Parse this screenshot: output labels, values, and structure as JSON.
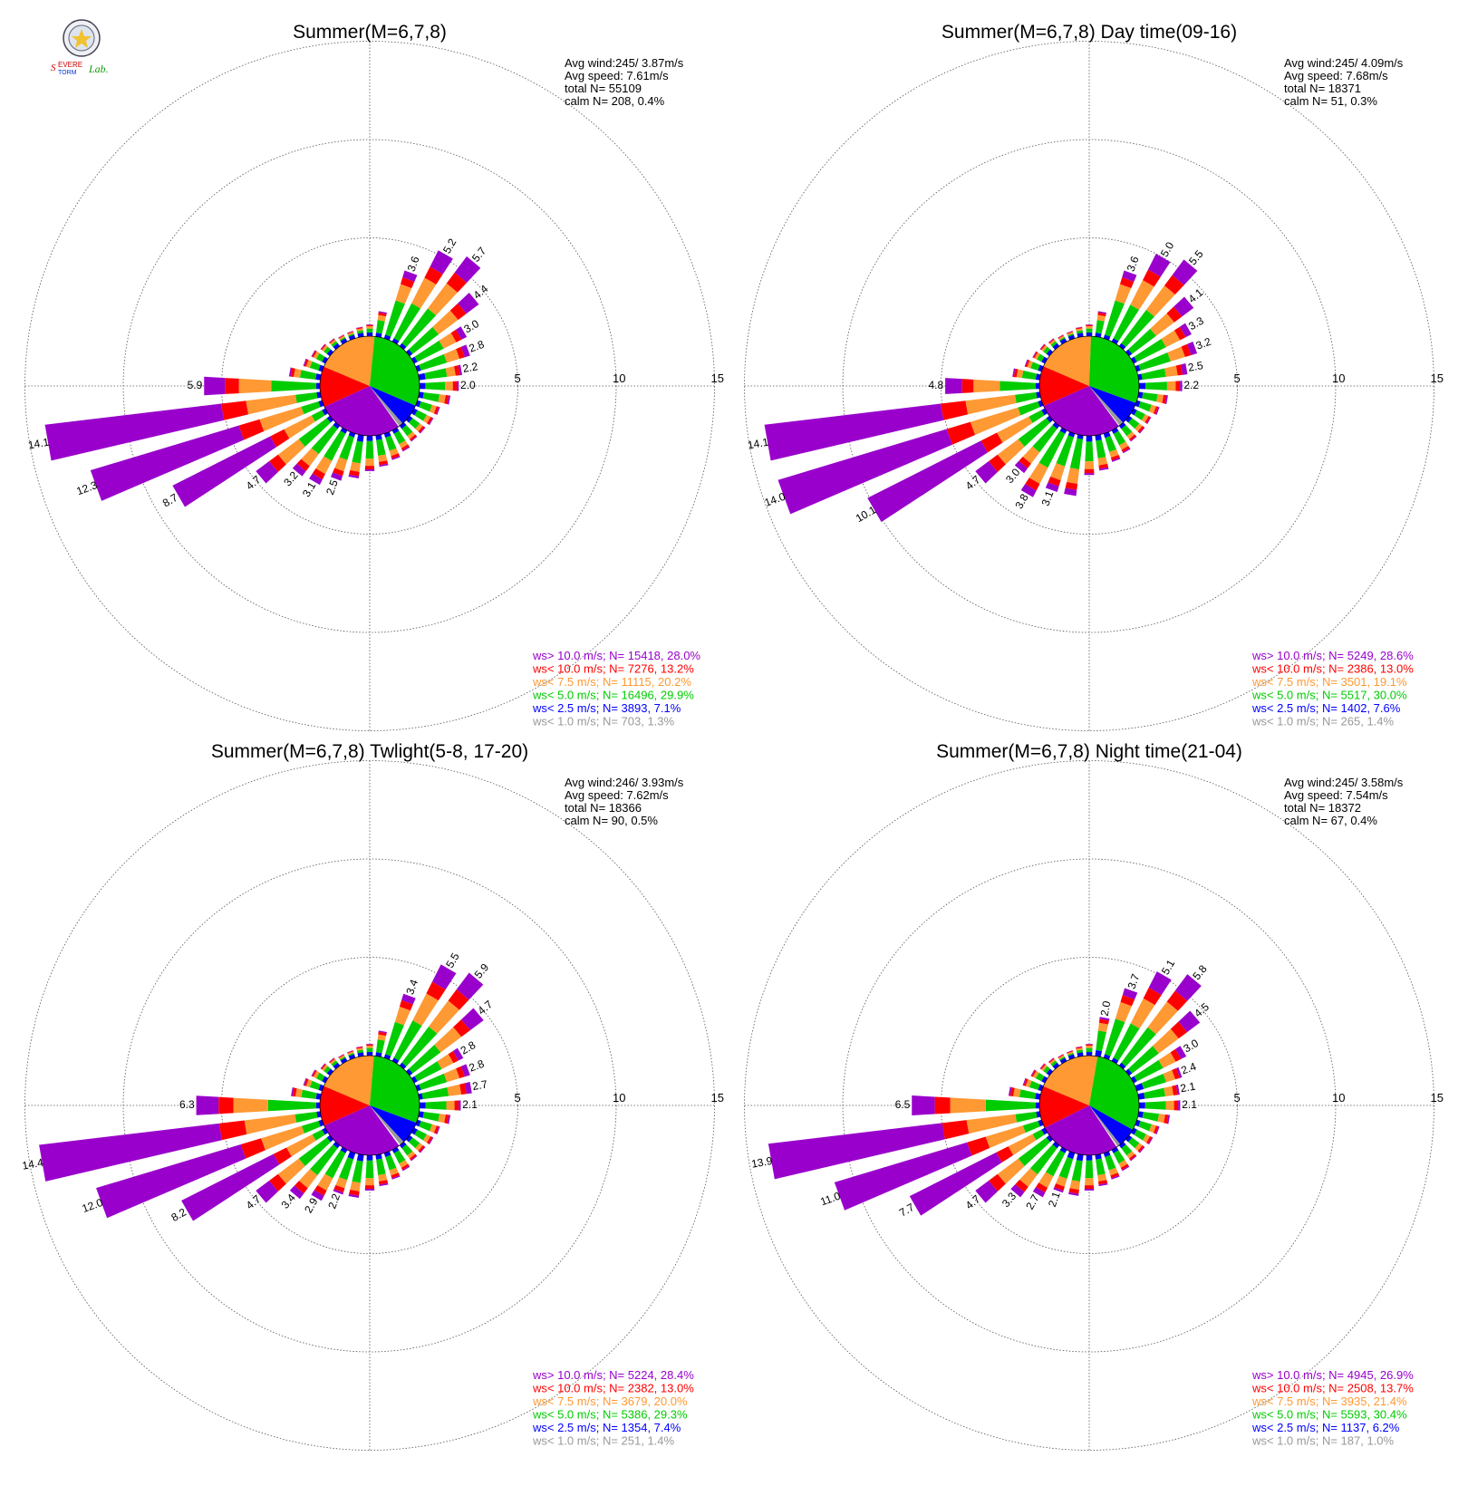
{
  "logo": {
    "text": "Severe Storm Lab."
  },
  "colors": {
    "gt10": "#9900cc",
    "lt10": "#ff0000",
    "lt7_5": "#ff9933",
    "lt5": "#00cc00",
    "lt2_5": "#0000ff",
    "lt1": "#999999"
  },
  "rings": [
    "5",
    "10",
    "15"
  ],
  "chart_data": [
    {
      "type": "wind-rose",
      "title": "Summer(M=6,7,8)",
      "stats": {
        "avg_wind": "Avg wind:245/ 3.87m/s",
        "avg_speed": "Avg speed: 7.61m/s",
        "total": "total N=      55109",
        "calm": "calm N=    208,   0.4%"
      },
      "legend": [
        {
          "text": "ws> 10.0 m/s; N= 15418, 28.0%",
          "color": "#9900cc"
        },
        {
          "text": "ws< 10.0 m/s; N=  7276, 13.2%",
          "color": "#ff0000"
        },
        {
          "text": "ws<  7.5 m/s; N= 11115, 20.2%",
          "color": "#ff9933"
        },
        {
          "text": "ws<  5.0 m/s; N= 16496, 29.9%",
          "color": "#00cc00"
        },
        {
          "text": "ws<  2.5 m/s; N=  3893,  7.1%",
          "color": "#0000ff"
        },
        {
          "text": "ws<  1.0 m/s; N=   703,  1.3%",
          "color": "#999999"
        }
      ],
      "ring_values": [
        5,
        10,
        15
      ],
      "sectors_deg": [
        0,
        10,
        20,
        30,
        40,
        50,
        60,
        70,
        80,
        90,
        100,
        110,
        120,
        130,
        140,
        150,
        160,
        170,
        180,
        190,
        200,
        210,
        220,
        230,
        240,
        250,
        260,
        270,
        280,
        290,
        300,
        310,
        320,
        330,
        340,
        350
      ],
      "frequency_pct": [
        0.6,
        1.3,
        3.6,
        5.2,
        5.7,
        4.4,
        3.0,
        2.8,
        2.2,
        2.0,
        1.6,
        1.2,
        1.1,
        1.0,
        1.0,
        1.2,
        1.4,
        1.6,
        1.8,
        2.2,
        2.5,
        3.1,
        3.2,
        4.7,
        8.7,
        12.3,
        14.1,
        5.9,
        1.6,
        1.0,
        0.8,
        0.6,
        0.5,
        0.4,
        0.4,
        0.5
      ],
      "pie_pct": [
        28.0,
        13.2,
        20.2,
        29.9,
        7.1,
        1.3
      ],
      "labels": [
        {
          "deg": 20,
          "text": "3.6"
        },
        {
          "deg": 30,
          "text": "5.2"
        },
        {
          "deg": 40,
          "text": "5.7"
        },
        {
          "deg": 50,
          "text": "4.4"
        },
        {
          "deg": 60,
          "text": "3.0"
        },
        {
          "deg": 70,
          "text": "2.8"
        },
        {
          "deg": 80,
          "text": "2.2"
        },
        {
          "deg": 90,
          "text": "2.0"
        },
        {
          "deg": 200,
          "text": "2.5"
        },
        {
          "deg": 210,
          "text": "3.1"
        },
        {
          "deg": 220,
          "text": "3.2"
        },
        {
          "deg": 230,
          "text": "4.7"
        },
        {
          "deg": 240,
          "text": "8.7"
        },
        {
          "deg": 250,
          "text": "12.3"
        },
        {
          "deg": 260,
          "text": "14.1"
        },
        {
          "deg": 270,
          "text": "5.9"
        }
      ]
    },
    {
      "type": "wind-rose",
      "title": "Summer(M=6,7,8) Day time(09-16)",
      "stats": {
        "avg_wind": "Avg wind:245/ 4.09m/s",
        "avg_speed": "Avg speed: 7.68m/s",
        "total": "total N=     18371",
        "calm": "calm N=     51,   0.3%"
      },
      "legend": [
        {
          "text": "ws> 10.0 m/s; N=  5249, 28.6%",
          "color": "#9900cc"
        },
        {
          "text": "ws< 10.0 m/s; N=  2386, 13.0%",
          "color": "#ff0000"
        },
        {
          "text": "ws<  7.5 m/s; N=  3501, 19.1%",
          "color": "#ff9933"
        },
        {
          "text": "ws<  5.0 m/s; N=  5517, 30.0%",
          "color": "#00cc00"
        },
        {
          "text": "ws<  2.5 m/s; N=  1402,  7.6%",
          "color": "#0000ff"
        },
        {
          "text": "ws<  1.0 m/s; N=   265,  1.4%",
          "color": "#999999"
        }
      ],
      "ring_values": [
        5,
        10,
        15
      ],
      "sectors_deg": [
        0,
        10,
        20,
        30,
        40,
        50,
        60,
        70,
        80,
        90,
        100,
        110,
        120,
        130,
        140,
        150,
        160,
        170,
        180,
        190,
        200,
        210,
        220,
        230,
        240,
        250,
        260,
        270,
        280,
        290,
        300,
        310,
        320,
        330,
        340,
        350
      ],
      "frequency_pct": [
        0.6,
        1.3,
        3.6,
        5.0,
        5.5,
        4.1,
        3.3,
        3.2,
        2.5,
        2.2,
        1.5,
        1.2,
        1.0,
        1.0,
        1.0,
        1.3,
        1.5,
        1.8,
        2.0,
        3.1,
        3.1,
        3.8,
        3.0,
        4.7,
        10.1,
        14.0,
        14.1,
        4.8,
        1.4,
        0.9,
        0.7,
        0.6,
        0.5,
        0.4,
        0.4,
        0.5
      ],
      "pie_pct": [
        28.6,
        13.0,
        19.1,
        30.0,
        7.6,
        1.4
      ],
      "labels": [
        {
          "deg": 20,
          "text": "3.6"
        },
        {
          "deg": 30,
          "text": "5.0"
        },
        {
          "deg": 40,
          "text": "5.5"
        },
        {
          "deg": 50,
          "text": "4.1"
        },
        {
          "deg": 60,
          "text": "3.3"
        },
        {
          "deg": 70,
          "text": "3.2"
        },
        {
          "deg": 80,
          "text": "2.5"
        },
        {
          "deg": 90,
          "text": "2.2"
        },
        {
          "deg": 200,
          "text": "3.1"
        },
        {
          "deg": 210,
          "text": "3.8"
        },
        {
          "deg": 220,
          "text": "3.0"
        },
        {
          "deg": 230,
          "text": "4.7"
        },
        {
          "deg": 240,
          "text": "10.1"
        },
        {
          "deg": 250,
          "text": "14.0"
        },
        {
          "deg": 260,
          "text": "14.1"
        },
        {
          "deg": 270,
          "text": "4.8"
        }
      ]
    },
    {
      "type": "wind-rose",
      "title": "Summer(M=6,7,8) Twlight(5-8, 17-20)",
      "stats": {
        "avg_wind": "Avg wind:246/ 3.93m/s",
        "avg_speed": "Avg speed: 7.62m/s",
        "total": "total N=     18366",
        "calm": "calm N=     90,   0.5%"
      },
      "legend": [
        {
          "text": "ws> 10.0 m/s; N=  5224, 28.4%",
          "color": "#9900cc"
        },
        {
          "text": "ws< 10.0 m/s; N=  2382, 13.0%",
          "color": "#ff0000"
        },
        {
          "text": "ws<  7.5 m/s; N=  3679, 20.0%",
          "color": "#ff9933"
        },
        {
          "text": "ws<  5.0 m/s; N=  5386, 29.3%",
          "color": "#00cc00"
        },
        {
          "text": "ws<  2.5 m/s; N=  1354,  7.4%",
          "color": "#0000ff"
        },
        {
          "text": "ws<  1.0 m/s; N=   251,  1.4%",
          "color": "#999999"
        }
      ],
      "ring_values": [
        5,
        10,
        15
      ],
      "sectors_deg": [
        0,
        10,
        20,
        30,
        40,
        50,
        60,
        70,
        80,
        90,
        100,
        110,
        120,
        130,
        140,
        150,
        160,
        170,
        180,
        190,
        200,
        210,
        220,
        230,
        240,
        250,
        260,
        270,
        280,
        290,
        300,
        310,
        320,
        330,
        340,
        350
      ],
      "frequency_pct": [
        0.6,
        1.3,
        3.4,
        5.5,
        5.9,
        4.7,
        2.8,
        2.8,
        2.7,
        2.1,
        1.6,
        1.2,
        1.1,
        1.0,
        1.0,
        1.2,
        1.4,
        1.6,
        1.8,
        2.2,
        2.2,
        2.9,
        3.4,
        4.7,
        8.2,
        12.0,
        14.4,
        6.3,
        1.5,
        1.0,
        0.8,
        0.6,
        0.5,
        0.4,
        0.4,
        0.5
      ],
      "pie_pct": [
        28.4,
        13.0,
        20.0,
        29.3,
        7.4,
        1.4
      ],
      "labels": [
        {
          "deg": 20,
          "text": "3.4"
        },
        {
          "deg": 30,
          "text": "5.5"
        },
        {
          "deg": 40,
          "text": "5.9"
        },
        {
          "deg": 50,
          "text": "4.7"
        },
        {
          "deg": 60,
          "text": "2.8"
        },
        {
          "deg": 70,
          "text": "2.8"
        },
        {
          "deg": 80,
          "text": "2.7"
        },
        {
          "deg": 90,
          "text": "2.1"
        },
        {
          "deg": 200,
          "text": "2.2"
        },
        {
          "deg": 210,
          "text": "2.9"
        },
        {
          "deg": 220,
          "text": "3.4"
        },
        {
          "deg": 230,
          "text": "4.7"
        },
        {
          "deg": 240,
          "text": "8.2"
        },
        {
          "deg": 250,
          "text": "12.0"
        },
        {
          "deg": 260,
          "text": "14.4"
        },
        {
          "deg": 270,
          "text": "6.3"
        }
      ]
    },
    {
      "type": "wind-rose",
      "title": "Summer(M=6,7,8) Night time(21-04)",
      "stats": {
        "avg_wind": "Avg wind:245/ 3.58m/s",
        "avg_speed": "Avg speed: 7.54m/s",
        "total": "total N=     18372",
        "calm": "calm N=     67,   0.4%"
      },
      "legend": [
        {
          "text": "ws> 10.0 m/s; N=  4945, 26.9%",
          "color": "#9900cc"
        },
        {
          "text": "ws< 10.0 m/s; N=  2508, 13.7%",
          "color": "#ff0000"
        },
        {
          "text": "ws<  7.5 m/s; N=  3935, 21.4%",
          "color": "#ff9933"
        },
        {
          "text": "ws<  5.0 m/s; N=  5593, 30.4%",
          "color": "#00cc00"
        },
        {
          "text": "ws<  2.5 m/s; N=  1137,  6.2%",
          "color": "#0000ff"
        },
        {
          "text": "ws<  1.0 m/s; N=   187,  1.0%",
          "color": "#999999"
        }
      ],
      "ring_values": [
        5,
        10,
        15
      ],
      "sectors_deg": [
        0,
        10,
        20,
        30,
        40,
        50,
        60,
        70,
        80,
        90,
        100,
        110,
        120,
        130,
        140,
        150,
        160,
        170,
        180,
        190,
        200,
        210,
        220,
        230,
        240,
        250,
        260,
        270,
        280,
        290,
        300,
        310,
        320,
        330,
        340,
        350
      ],
      "frequency_pct": [
        0.6,
        2.0,
        3.7,
        5.1,
        5.8,
        4.5,
        3.0,
        2.4,
        2.1,
        2.1,
        1.6,
        1.2,
        1.1,
        1.0,
        1.0,
        1.2,
        1.4,
        1.6,
        1.8,
        2.1,
        2.1,
        2.7,
        3.3,
        4.7,
        7.7,
        11.0,
        13.9,
        6.5,
        1.6,
        1.0,
        0.8,
        0.6,
        0.5,
        0.4,
        0.4,
        0.5
      ],
      "pie_pct": [
        26.9,
        13.7,
        21.4,
        30.4,
        6.2,
        1.0
      ],
      "labels": [
        {
          "deg": 10,
          "text": "2.0"
        },
        {
          "deg": 20,
          "text": "3.7"
        },
        {
          "deg": 30,
          "text": "5.1"
        },
        {
          "deg": 40,
          "text": "5.8"
        },
        {
          "deg": 50,
          "text": "4.5"
        },
        {
          "deg": 60,
          "text": "3.0"
        },
        {
          "deg": 70,
          "text": "2.4"
        },
        {
          "deg": 80,
          "text": "2.1"
        },
        {
          "deg": 90,
          "text": "2.1"
        },
        {
          "deg": 200,
          "text": "2.1"
        },
        {
          "deg": 210,
          "text": "2.7"
        },
        {
          "deg": 220,
          "text": "3.3"
        },
        {
          "deg": 230,
          "text": "4.7"
        },
        {
          "deg": 240,
          "text": "7.7"
        },
        {
          "deg": 250,
          "text": "11.0"
        },
        {
          "deg": 260,
          "text": "13.9"
        },
        {
          "deg": 270,
          "text": "6.5"
        }
      ]
    }
  ]
}
